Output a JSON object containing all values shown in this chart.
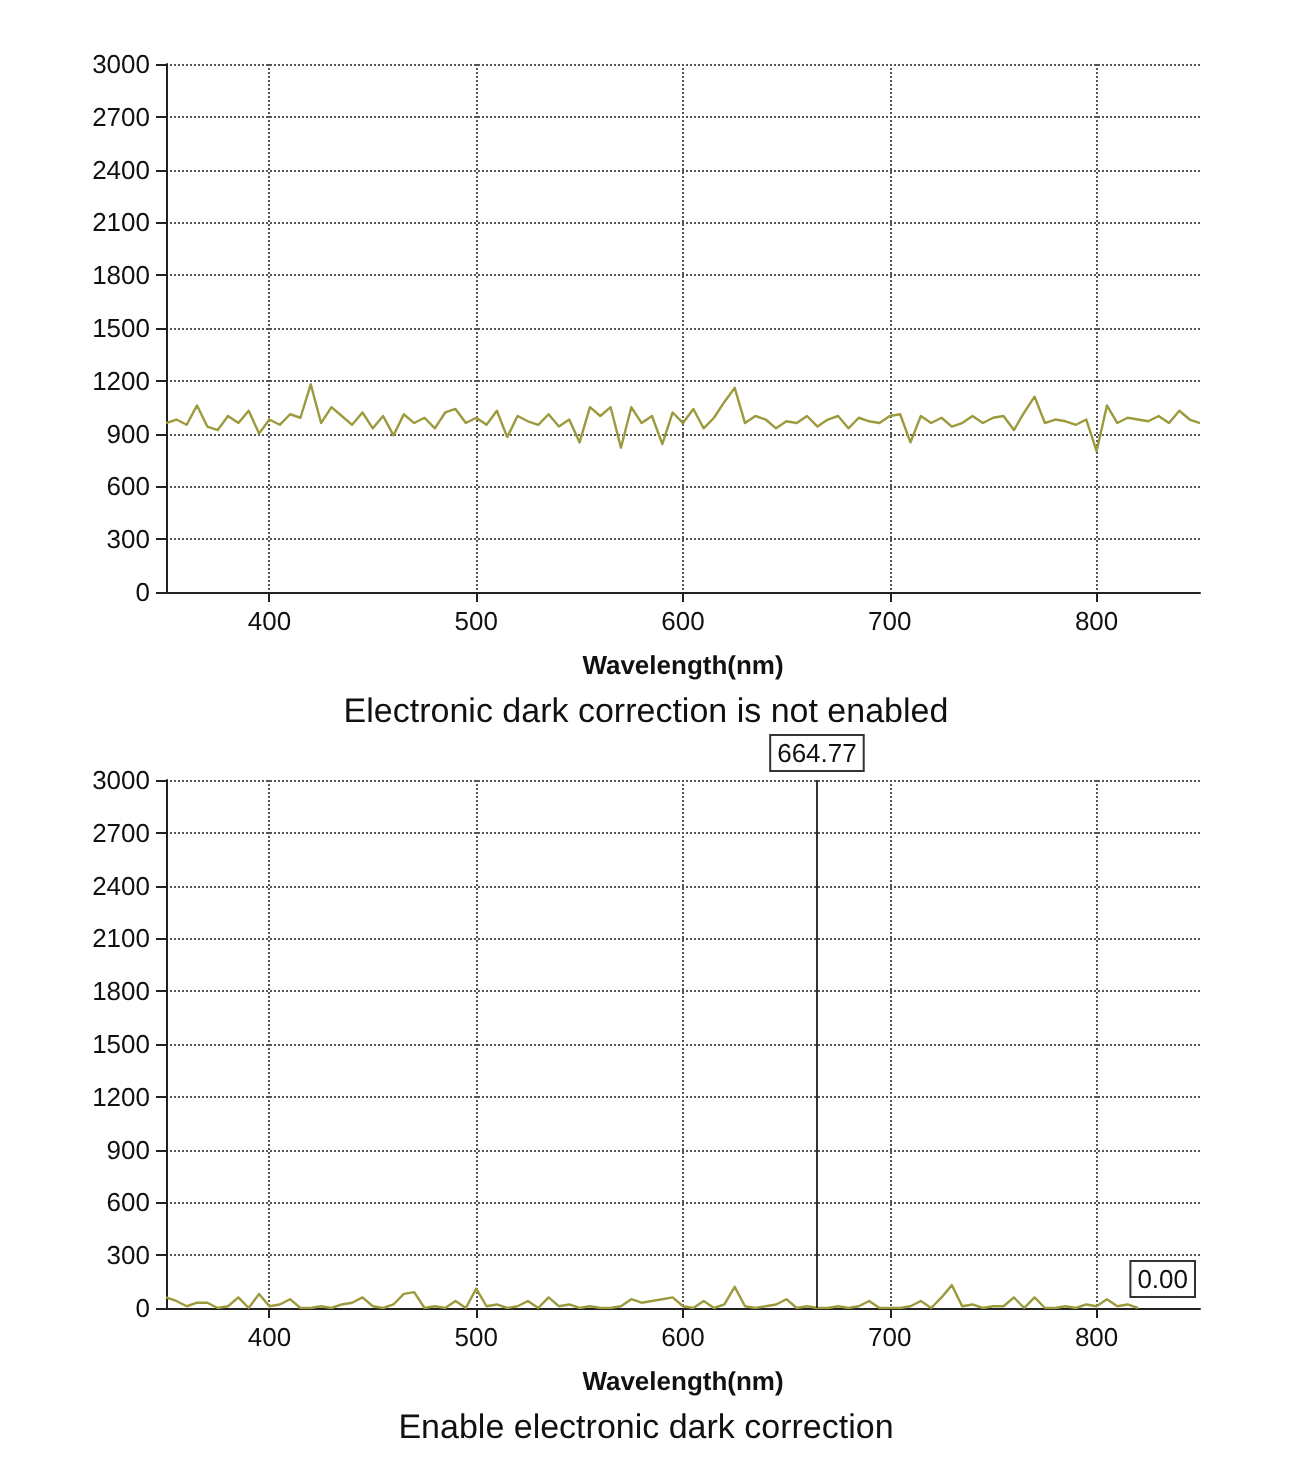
{
  "chart_data": [
    {
      "type": "line",
      "xlabel": "Wavelength(nm)",
      "annotations": [
        "Electronic dark correction is not enabled"
      ],
      "x": [
        350,
        355,
        360,
        365,
        370,
        375,
        380,
        385,
        390,
        395,
        400,
        405,
        410,
        415,
        420,
        425,
        430,
        435,
        440,
        445,
        450,
        455,
        460,
        465,
        470,
        475,
        480,
        485,
        490,
        495,
        500,
        505,
        510,
        515,
        520,
        525,
        530,
        535,
        540,
        545,
        550,
        555,
        560,
        565,
        570,
        575,
        580,
        585,
        590,
        595,
        600,
        605,
        610,
        615,
        620,
        625,
        630,
        635,
        640,
        645,
        650,
        655,
        660,
        665,
        670,
        675,
        680,
        685,
        690,
        695,
        700,
        705,
        710,
        715,
        720,
        725,
        730,
        735,
        740,
        745,
        750,
        755,
        760,
        765,
        770,
        775,
        780,
        785,
        790,
        795,
        800,
        805,
        810,
        815,
        820,
        825,
        830,
        835,
        840,
        845,
        850
      ],
      "series": [
        {
          "color": "#9c9a3c",
          "values": [
            960,
            980,
            950,
            1060,
            940,
            920,
            1000,
            960,
            1030,
            900,
            980,
            950,
            1010,
            990,
            1180,
            960,
            1050,
            1000,
            950,
            1020,
            930,
            1000,
            890,
            1010,
            960,
            990,
            930,
            1020,
            1040,
            960,
            990,
            950,
            1030,
            880,
            1000,
            970,
            950,
            1010,
            940,
            980,
            850,
            1050,
            1000,
            1050,
            820,
            1050,
            960,
            1000,
            840,
            1020,
            960,
            1040,
            930,
            990,
            1080,
            1160,
            960,
            1000,
            980,
            930,
            970,
            960,
            1000,
            940,
            980,
            1000,
            930,
            990,
            970,
            960,
            1000,
            1010,
            850,
            1000,
            960,
            990,
            940,
            960,
            1000,
            960,
            990,
            1000,
            920,
            1020,
            1110,
            960,
            980,
            970,
            950,
            980,
            800,
            1060,
            960,
            990,
            980,
            970,
            1000,
            960,
            1030,
            980,
            960
          ]
        }
      ],
      "xlim": [
        350,
        850
      ],
      "xticks": [
        400,
        500,
        600,
        700,
        800
      ],
      "ylim": [
        0,
        3000
      ],
      "yticks": [
        0,
        300,
        600,
        900,
        1200,
        1500,
        1800,
        2100,
        2400,
        2700,
        3000
      ],
      "grid": true,
      "marker": "none",
      "line_style": "solid"
    },
    {
      "type": "line",
      "xlabel": "Wavelength(nm)",
      "annotations": [
        "Enable electronic dark correction",
        "0.00"
      ],
      "x": [
        350,
        355,
        360,
        365,
        370,
        375,
        380,
        385,
        390,
        395,
        400,
        405,
        410,
        415,
        420,
        425,
        430,
        435,
        440,
        445,
        450,
        455,
        460,
        465,
        470,
        475,
        480,
        485,
        490,
        495,
        500,
        505,
        510,
        515,
        520,
        525,
        530,
        535,
        540,
        545,
        550,
        555,
        560,
        565,
        570,
        575,
        580,
        585,
        590,
        595,
        600,
        605,
        610,
        615,
        620,
        625,
        630,
        635,
        640,
        645,
        650,
        655,
        660,
        665,
        670,
        675,
        680,
        685,
        690,
        695,
        700,
        705,
        710,
        715,
        720,
        725,
        730,
        735,
        740,
        745,
        750,
        755,
        760,
        765,
        770,
        775,
        780,
        785,
        790,
        795,
        800,
        805,
        810,
        815,
        820
      ],
      "series": [
        {
          "color": "#9c9a3c",
          "values": [
            60,
            40,
            10,
            30,
            30,
            0,
            10,
            60,
            0,
            80,
            10,
            20,
            50,
            0,
            0,
            10,
            0,
            20,
            30,
            60,
            10,
            0,
            20,
            80,
            90,
            0,
            10,
            0,
            40,
            0,
            110,
            10,
            20,
            0,
            10,
            40,
            0,
            60,
            10,
            20,
            0,
            10,
            0,
            0,
            10,
            50,
            30,
            40,
            50,
            60,
            10,
            0,
            40,
            0,
            20,
            120,
            10,
            0,
            10,
            20,
            50,
            0,
            10,
            0,
            0,
            10,
            0,
            10,
            40,
            0,
            0,
            0,
            10,
            40,
            0,
            60,
            130,
            10,
            20,
            0,
            10,
            10,
            60,
            0,
            60,
            0,
            0,
            10,
            0,
            20,
            10,
            50,
            10,
            20,
            0
          ]
        }
      ],
      "xlim": [
        350,
        850
      ],
      "xticks": [
        400,
        500,
        600,
        700,
        800
      ],
      "ylim": [
        0,
        3000
      ],
      "yticks": [
        0,
        300,
        600,
        900,
        1200,
        1500,
        1800,
        2100,
        2400,
        2700,
        3000
      ],
      "ref_lines": [
        {
          "axis": "x",
          "value": 664.77,
          "label": "664.77",
          "color": "#333333"
        }
      ],
      "grid": true,
      "marker": "none",
      "line_style": "solid"
    }
  ]
}
